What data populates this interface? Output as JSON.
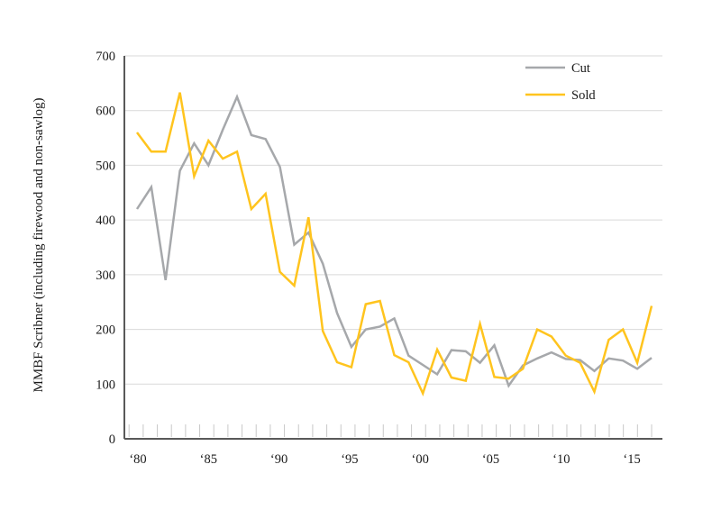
{
  "chart_data": {
    "type": "line",
    "title": "",
    "xlabel": "",
    "ylabel": "MMBF Scribner (including firewood and non-sawlog)",
    "ylim": [
      0,
      700
    ],
    "ytick_interval": 100,
    "ytick_labels": [
      "0",
      "100",
      "200",
      "300",
      "400",
      "500",
      "600",
      "700"
    ],
    "xtick_labels": [
      "‘80",
      "‘85",
      "‘90",
      "‘95",
      "‘00",
      "‘05",
      "‘10",
      "‘15"
    ],
    "grid": "horizontal",
    "legend_position": "top-right",
    "years": [
      1980,
      1981,
      1982,
      1983,
      1984,
      1985,
      1986,
      1987,
      1988,
      1989,
      1990,
      1991,
      1992,
      1993,
      1994,
      1995,
      1996,
      1997,
      1998,
      1999,
      2000,
      2001,
      2002,
      2003,
      2004,
      2005,
      2006,
      2007,
      2008,
      2009,
      2010,
      2011,
      2012,
      2013,
      2014,
      2015,
      2016
    ],
    "series": [
      {
        "name": "Cut",
        "color": "#a6a8ab",
        "values": [
          420,
          460,
          290,
          490,
          540,
          500,
          565,
          625,
          555,
          548,
          497,
          355,
          377,
          320,
          230,
          168,
          200,
          205,
          220,
          152,
          135,
          118,
          162,
          160,
          139,
          171,
          97,
          134,
          147,
          158,
          146,
          144,
          124,
          147,
          143,
          128,
          148
        ]
      },
      {
        "name": "Sold",
        "color": "#ffc41e",
        "values": [
          560,
          525,
          525,
          633,
          480,
          545,
          512,
          525,
          420,
          448,
          305,
          280,
          405,
          197,
          140,
          131,
          246,
          252,
          153,
          140,
          83,
          163,
          112,
          106,
          210,
          113,
          110,
          128,
          200,
          187,
          152,
          139,
          86,
          181,
          200,
          139,
          243
        ]
      }
    ],
    "colors": {
      "gridline": "#d9d9d9",
      "tick": "#c8c8c8",
      "axis": "#595959",
      "text": "#1a1a1a"
    }
  }
}
